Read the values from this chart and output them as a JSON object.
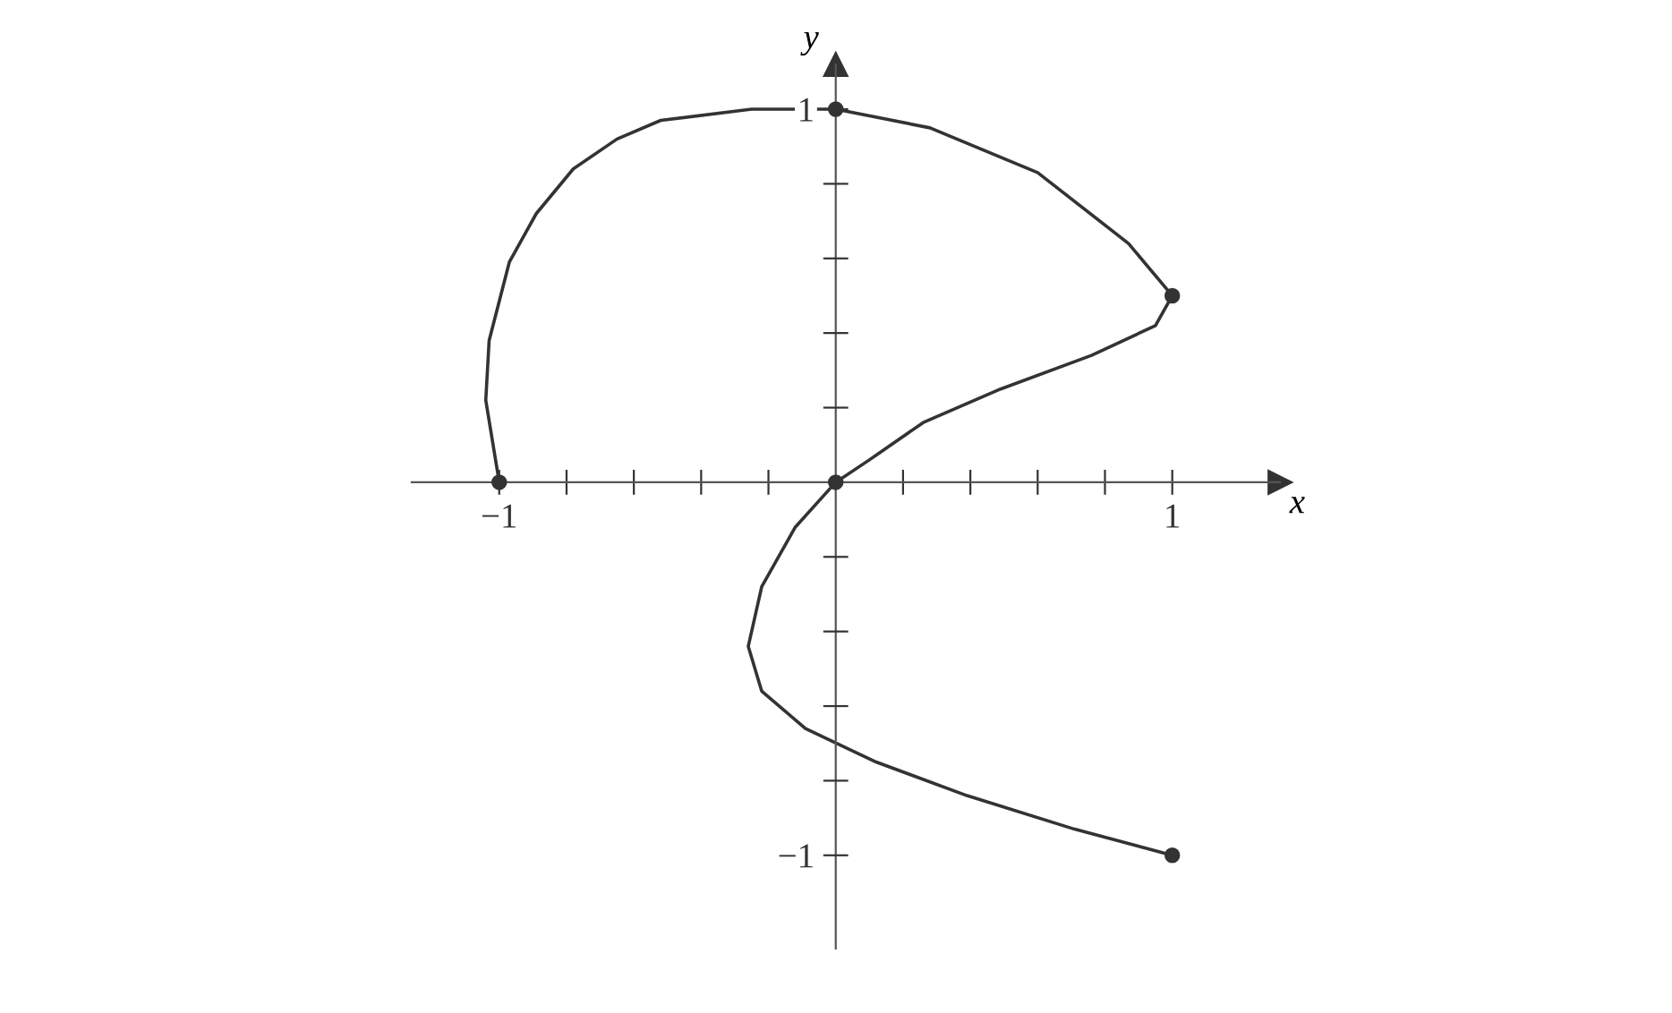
{
  "chart_data": {
    "type": "line",
    "xlabel": "x",
    "ylabel": "y",
    "series": [
      {
        "color": "#333333",
        "marker": "none",
        "x": [
          -1,
          -1.04,
          -1.03,
          -0.97,
          -0.89,
          -0.78,
          -0.65,
          -0.52,
          -0.25,
          0,
          0.28,
          0.6,
          0.87,
          1,
          0.95,
          0.76,
          0.49,
          0.26,
          0.1,
          0,
          -0.12,
          -0.22,
          -0.26,
          -0.22,
          -0.09,
          0.12,
          0.39,
          0.71,
          1
        ],
        "values": [
          0,
          0.22,
          0.38,
          0.59,
          0.72,
          0.84,
          0.92,
          0.97,
          1.0,
          1,
          0.95,
          0.83,
          0.64,
          0.5,
          0.42,
          0.34,
          0.25,
          0.16,
          0.06,
          0,
          -0.12,
          -0.28,
          -0.44,
          -0.56,
          -0.66,
          -0.75,
          -0.84,
          -0.93,
          -1
        ]
      },
      {
        "type": "scatter",
        "color": "#333333",
        "marker": "circle",
        "x": [
          -1,
          0,
          1,
          0,
          1
        ],
        "values": [
          0,
          1,
          0.5,
          0,
          -1
        ]
      }
    ],
    "xlim": [
      -1.26,
      1.32
    ],
    "ylim": [
      -1.25,
      1.12
    ],
    "xticks": [
      {
        "value": -1,
        "label": "−1"
      },
      {
        "value": -0.8,
        "label": null
      },
      {
        "value": -0.6,
        "label": null
      },
      {
        "value": -0.4,
        "label": null
      },
      {
        "value": -0.2,
        "label": null
      },
      {
        "value": 0.2,
        "label": null
      },
      {
        "value": 0.4,
        "label": null
      },
      {
        "value": 0.6,
        "label": null
      },
      {
        "value": 0.8,
        "label": null
      },
      1
    ],
    "yticks": [
      {
        "value": -1,
        "label": "−1"
      },
      {
        "value": -0.8,
        "label": null
      },
      {
        "value": -0.6,
        "label": null
      },
      {
        "value": -0.4,
        "label": null
      },
      {
        "value": -0.2,
        "label": null
      },
      {
        "value": 0.2,
        "label": null
      },
      {
        "value": 0.4,
        "label": null
      },
      {
        "value": 0.6,
        "label": null
      },
      {
        "value": 0.8,
        "label": null
      },
      1
    ],
    "grid": false,
    "legend": false
  }
}
